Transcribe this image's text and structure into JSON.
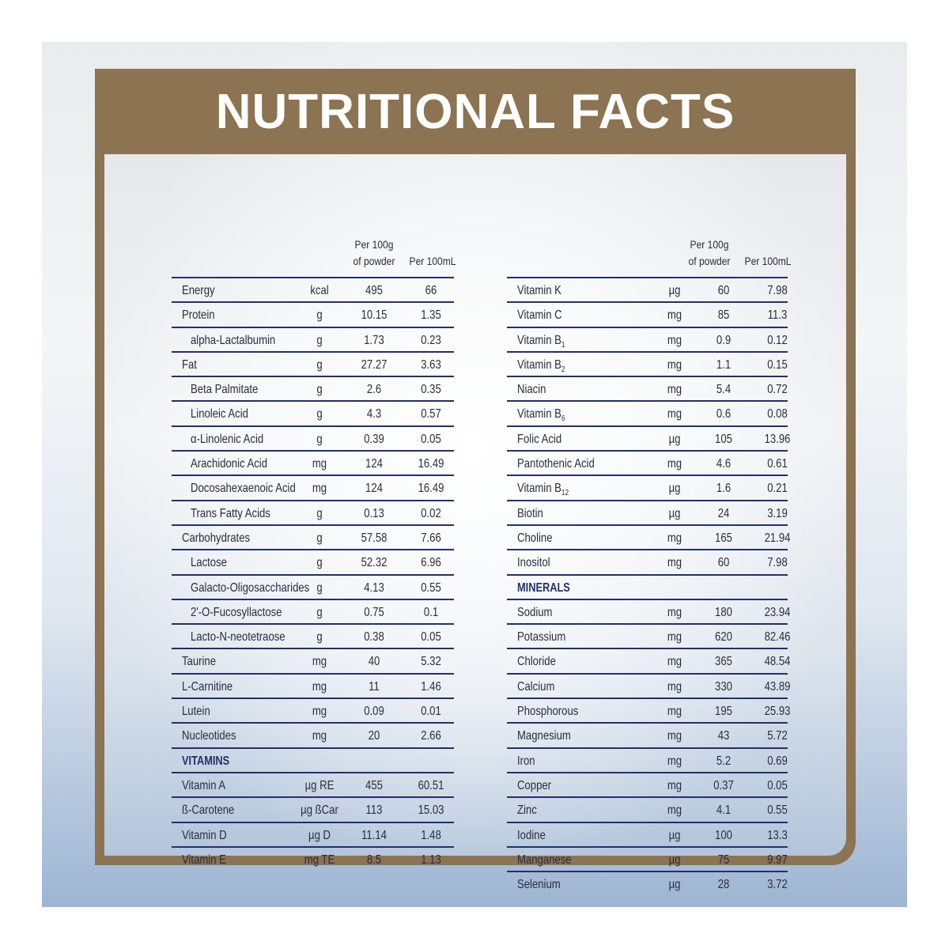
{
  "title": "NUTRITIONAL FACTS",
  "columns": {
    "per100g_line1": "Per 100g",
    "per100g_line2": "of powder",
    "per100ml": "Per 100mL"
  },
  "left_rows": [
    {
      "name": "Energy",
      "unit": "kcal",
      "v1": "495",
      "v2": "66",
      "sub": false
    },
    {
      "name": "Protein",
      "unit": "g",
      "v1": "10.15",
      "v2": "1.35",
      "sub": false
    },
    {
      "name": "alpha-Lactalbumin",
      "unit": "g",
      "v1": "1.73",
      "v2": "0.23",
      "sub": true
    },
    {
      "name": "Fat",
      "unit": "g",
      "v1": "27.27",
      "v2": "3.63",
      "sub": false
    },
    {
      "name": "Beta Palmitate",
      "unit": "g",
      "v1": "2.6",
      "v2": "0.35",
      "sub": true
    },
    {
      "name": "Linoleic Acid",
      "unit": "g",
      "v1": "4.3",
      "v2": "0.57",
      "sub": true
    },
    {
      "name": "α-Linolenic Acid",
      "unit": "g",
      "v1": "0.39",
      "v2": "0.05",
      "sub": true
    },
    {
      "name": "Arachidonic Acid",
      "unit": "mg",
      "v1": "124",
      "v2": "16.49",
      "sub": true
    },
    {
      "name": "Docosahexaenoic Acid",
      "unit": "mg",
      "v1": "124",
      "v2": "16.49",
      "sub": true
    },
    {
      "name": "Trans Fatty Acids",
      "unit": "g",
      "v1": "0.13",
      "v2": "0.02",
      "sub": true
    },
    {
      "name": "Carbohydrates",
      "unit": "g",
      "v1": "57.58",
      "v2": "7.66",
      "sub": false
    },
    {
      "name": "Lactose",
      "unit": "g",
      "v1": "52.32",
      "v2": "6.96",
      "sub": true
    },
    {
      "name": "Galacto-Oligosaccharides",
      "unit": "g",
      "v1": "4.13",
      "v2": "0.55",
      "sub": true
    },
    {
      "name": "2'-O-Fucosyllactose",
      "unit": "g",
      "v1": "0.75",
      "v2": "0.1",
      "sub": true
    },
    {
      "name": "Lacto-N-neotetraose",
      "unit": "g",
      "v1": "0.38",
      "v2": "0.05",
      "sub": true
    },
    {
      "name": "Taurine",
      "unit": "mg",
      "v1": "40",
      "v2": "5.32",
      "sub": false
    },
    {
      "name": "L-Carnitine",
      "unit": "mg",
      "v1": "11",
      "v2": "1.46",
      "sub": false
    },
    {
      "name": "Lutein",
      "unit": "mg",
      "v1": "0.09",
      "v2": "0.01",
      "sub": false
    },
    {
      "name": "Nucleotides",
      "unit": "mg",
      "v1": "20",
      "v2": "2.66",
      "sub": false
    },
    {
      "name": "VITAMINS",
      "section": true
    },
    {
      "name": "Vitamin A",
      "unit": "µg RE",
      "v1": "455",
      "v2": "60.51",
      "sub": false
    },
    {
      "name": "ß-Carotene",
      "unit": "µg ßCar",
      "v1": "113",
      "v2": "15.03",
      "sub": false
    },
    {
      "name": "Vitamin D",
      "unit": "µg D",
      "v1": "11.14",
      "v2": "1.48",
      "sub": false
    },
    {
      "name": "Vitamin E",
      "unit": "mg TE",
      "v1": "8.5",
      "v2": "1.13",
      "sub": false
    }
  ],
  "right_rows": [
    {
      "name": "Vitamin K",
      "unit": "µg",
      "v1": "60",
      "v2": "7.98"
    },
    {
      "name": "Vitamin C",
      "unit": "mg",
      "v1": "85",
      "v2": "11.3"
    },
    {
      "name": "Vitamin B",
      "subscript": "1",
      "unit": "mg",
      "v1": "0.9",
      "v2": "0.12"
    },
    {
      "name": "Vitamin B",
      "subscript": "2",
      "unit": "mg",
      "v1": "1.1",
      "v2": "0.15"
    },
    {
      "name": "Niacin",
      "unit": "mg",
      "v1": "5.4",
      "v2": "0.72"
    },
    {
      "name": "Vitamin B",
      "subscript": "6",
      "unit": "mg",
      "v1": "0.6",
      "v2": "0.08"
    },
    {
      "name": "Folic Acid",
      "unit": "µg",
      "v1": "105",
      "v2": "13.96"
    },
    {
      "name": "Pantothenic Acid",
      "unit": "mg",
      "v1": "4.6",
      "v2": "0.61"
    },
    {
      "name": "Vitamin B",
      "subscript": "12",
      "unit": "µg",
      "v1": "1.6",
      "v2": "0.21"
    },
    {
      "name": "Biotin",
      "unit": "µg",
      "v1": "24",
      "v2": "3.19"
    },
    {
      "name": "Choline",
      "unit": "mg",
      "v1": "165",
      "v2": "21.94"
    },
    {
      "name": "Inositol",
      "unit": "mg",
      "v1": "60",
      "v2": "7.98"
    },
    {
      "name": "MINERALS",
      "section": true
    },
    {
      "name": "Sodium",
      "unit": "mg",
      "v1": "180",
      "v2": "23.94"
    },
    {
      "name": "Potassium",
      "unit": "mg",
      "v1": "620",
      "v2": "82.46"
    },
    {
      "name": "Chloride",
      "unit": "mg",
      "v1": "365",
      "v2": "48.54"
    },
    {
      "name": "Calcium",
      "unit": "mg",
      "v1": "330",
      "v2": "43.89"
    },
    {
      "name": "Phosphorous",
      "unit": "mg",
      "v1": "195",
      "v2": "25.93"
    },
    {
      "name": "Magnesium",
      "unit": "mg",
      "v1": "43",
      "v2": "5.72"
    },
    {
      "name": "Iron",
      "unit": "mg",
      "v1": "5.2",
      "v2": "0.69"
    },
    {
      "name": "Copper",
      "unit": "mg",
      "v1": "0.37",
      "v2": "0.05"
    },
    {
      "name": "Zinc",
      "unit": "mg",
      "v1": "4.1",
      "v2": "0.55"
    },
    {
      "name": "Iodine",
      "unit": "µg",
      "v1": "100",
      "v2": "13.3"
    },
    {
      "name": "Manganese",
      "unit": "µg",
      "v1": "75",
      "v2": "9.97"
    },
    {
      "name": "Selenium",
      "unit": "µg",
      "v1": "28",
      "v2": "3.72"
    }
  ],
  "colors": {
    "frame": "#8c7351",
    "rule": "#23306a",
    "text": "#2b2b3d"
  }
}
